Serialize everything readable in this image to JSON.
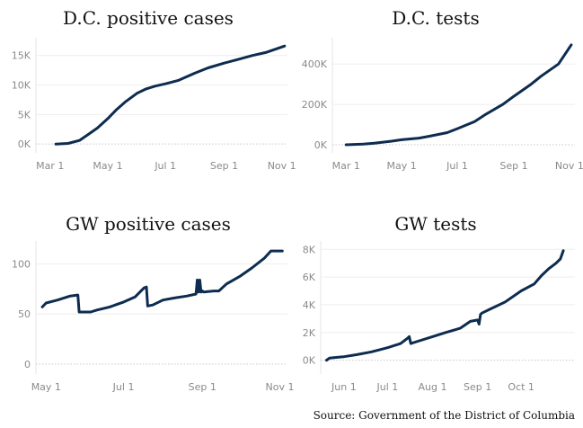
{
  "source": "Source: Government of the District of Columbia",
  "line_color": "#0d2c4f",
  "chart_data": [
    {
      "id": "dc-cases",
      "type": "line",
      "title": "D.C. positive cases",
      "xlabel": "",
      "ylabel": "",
      "x_domain": [
        "2020-02-15",
        "2020-11-07"
      ],
      "y_domain": [
        -1500,
        18000
      ],
      "x_ticks": [
        {
          "date": "2020-03-01",
          "label": "Mar 1"
        },
        {
          "date": "2020-05-01",
          "label": "May 1"
        },
        {
          "date": "2020-07-01",
          "label": "Jul 1"
        },
        {
          "date": "2020-09-01",
          "label": "Sep 1"
        },
        {
          "date": "2020-11-01",
          "label": "Nov 1"
        }
      ],
      "y_ticks": [
        {
          "value": 0,
          "label": "0K"
        },
        {
          "value": 5000,
          "label": "5K"
        },
        {
          "value": 10000,
          "label": "10K"
        },
        {
          "value": 15000,
          "label": "15K"
        }
      ],
      "series": [
        {
          "x": [
            "2020-03-07",
            "2020-03-20",
            "2020-04-01",
            "2020-04-10",
            "2020-04-20",
            "2020-05-01",
            "2020-05-10",
            "2020-05-20",
            "2020-06-01",
            "2020-06-10",
            "2020-06-20",
            "2020-07-01",
            "2020-07-15",
            "2020-08-01",
            "2020-08-15",
            "2020-09-01",
            "2020-09-15",
            "2020-10-01",
            "2020-10-15",
            "2020-11-04"
          ],
          "values": [
            0,
            100,
            600,
            1600,
            2700,
            4300,
            5800,
            7200,
            8600,
            9300,
            9800,
            10200,
            10800,
            12000,
            12900,
            13700,
            14300,
            15000,
            15500,
            16600
          ]
        }
      ]
    },
    {
      "id": "dc-tests",
      "type": "line",
      "title": "D.C. tests",
      "xlabel": "",
      "ylabel": "",
      "x_domain": [
        "2020-02-15",
        "2020-11-07"
      ],
      "y_domain": [
        -40000,
        530000
      ],
      "x_ticks": [
        {
          "date": "2020-03-01",
          "label": "Mar 1"
        },
        {
          "date": "2020-05-01",
          "label": "May 1"
        },
        {
          "date": "2020-07-01",
          "label": "Jul 1"
        },
        {
          "date": "2020-09-01",
          "label": "Sep 1"
        },
        {
          "date": "2020-11-01",
          "label": "Nov 1"
        }
      ],
      "y_ticks": [
        {
          "value": 0,
          "label": "0K"
        },
        {
          "value": 200000,
          "label": "200K"
        },
        {
          "value": 400000,
          "label": "400K"
        }
      ],
      "series": [
        {
          "x": [
            "2020-03-01",
            "2020-03-20",
            "2020-04-01",
            "2020-04-20",
            "2020-05-01",
            "2020-05-20",
            "2020-06-01",
            "2020-06-20",
            "2020-07-01",
            "2020-07-20",
            "2020-08-01",
            "2020-08-20",
            "2020-09-01",
            "2020-09-20",
            "2020-10-01",
            "2020-10-20",
            "2020-11-03"
          ],
          "values": [
            0,
            3000,
            8000,
            18000,
            25000,
            33000,
            43000,
            60000,
            80000,
            115000,
            150000,
            200000,
            240000,
            300000,
            340000,
            400000,
            495000
          ]
        }
      ]
    },
    {
      "id": "gw-cases",
      "type": "line",
      "title": "GW positive cases",
      "xlabel": "",
      "ylabel": "",
      "x_domain": [
        "2020-04-23",
        "2020-11-07"
      ],
      "y_domain": [
        -10,
        123
      ],
      "x_ticks": [
        {
          "date": "2020-05-01",
          "label": "May 1"
        },
        {
          "date": "2020-07-01",
          "label": "Jul 1"
        },
        {
          "date": "2020-09-01",
          "label": "Sep 1"
        },
        {
          "date": "2020-11-01",
          "label": "Nov 1"
        }
      ],
      "y_ticks": [
        {
          "value": 0,
          "label": "0"
        },
        {
          "value": 50,
          "label": "50"
        },
        {
          "value": 100,
          "label": "100"
        }
      ],
      "series": [
        {
          "x": [
            "2020-04-28",
            "2020-05-01",
            "2020-05-10",
            "2020-05-20",
            "2020-05-26",
            "2020-05-27",
            "2020-06-05",
            "2020-06-10",
            "2020-06-20",
            "2020-07-01",
            "2020-07-10",
            "2020-07-17",
            "2020-07-19",
            "2020-07-20",
            "2020-07-24",
            "2020-08-01",
            "2020-08-10",
            "2020-08-20",
            "2020-08-27",
            "2020-08-28",
            "2020-08-29",
            "2020-08-30",
            "2020-08-31",
            "2020-09-01",
            "2020-09-02",
            "2020-09-10",
            "2020-09-14",
            "2020-09-20",
            "2020-10-01",
            "2020-10-10",
            "2020-10-20",
            "2020-10-25",
            "2020-11-03"
          ],
          "values": [
            57,
            61,
            64,
            68,
            69,
            52,
            52,
            54,
            57,
            62,
            67,
            76,
            77,
            58,
            59,
            64,
            66,
            68,
            70,
            84,
            72,
            84,
            72,
            73,
            72,
            73,
            73,
            80,
            88,
            96,
            106,
            113,
            113
          ]
        }
      ]
    },
    {
      "id": "gw-tests",
      "type": "line",
      "title": "GW tests",
      "xlabel": "",
      "ylabel": "",
      "x_domain": [
        "2020-05-16",
        "2020-11-07"
      ],
      "y_domain": [
        -1000,
        8600
      ],
      "x_ticks": [
        {
          "date": "2020-06-01",
          "label": "Jun 1"
        },
        {
          "date": "2020-07-01",
          "label": "Jul 1"
        },
        {
          "date": "2020-08-01",
          "label": "Aug 1"
        },
        {
          "date": "2020-09-01",
          "label": "Sep 1"
        },
        {
          "date": "2020-10-01",
          "label": "Oct 1"
        }
      ],
      "y_ticks": [
        {
          "value": 0,
          "label": "0K"
        },
        {
          "value": 2000,
          "label": "2K"
        },
        {
          "value": 4000,
          "label": "4K"
        },
        {
          "value": 6000,
          "label": "6K"
        },
        {
          "value": 8000,
          "label": "8K"
        }
      ],
      "series": [
        {
          "x": [
            "2020-05-20",
            "2020-05-22",
            "2020-06-01",
            "2020-06-10",
            "2020-06-20",
            "2020-07-01",
            "2020-07-10",
            "2020-07-15",
            "2020-07-16",
            "2020-07-17",
            "2020-07-20",
            "2020-08-01",
            "2020-08-10",
            "2020-08-20",
            "2020-08-27",
            "2020-09-01",
            "2020-09-02",
            "2020-09-03",
            "2020-09-04",
            "2020-09-10",
            "2020-09-20",
            "2020-10-01",
            "2020-10-10",
            "2020-10-15",
            "2020-10-20",
            "2020-10-25",
            "2020-10-28",
            "2020-10-30"
          ],
          "values": [
            0,
            150,
            250,
            400,
            600,
            900,
            1200,
            1600,
            1700,
            1200,
            1300,
            1700,
            2000,
            2300,
            2800,
            2900,
            2600,
            3300,
            3400,
            3700,
            4200,
            5000,
            5500,
            6100,
            6600,
            7000,
            7300,
            7900
          ]
        }
      ]
    }
  ]
}
